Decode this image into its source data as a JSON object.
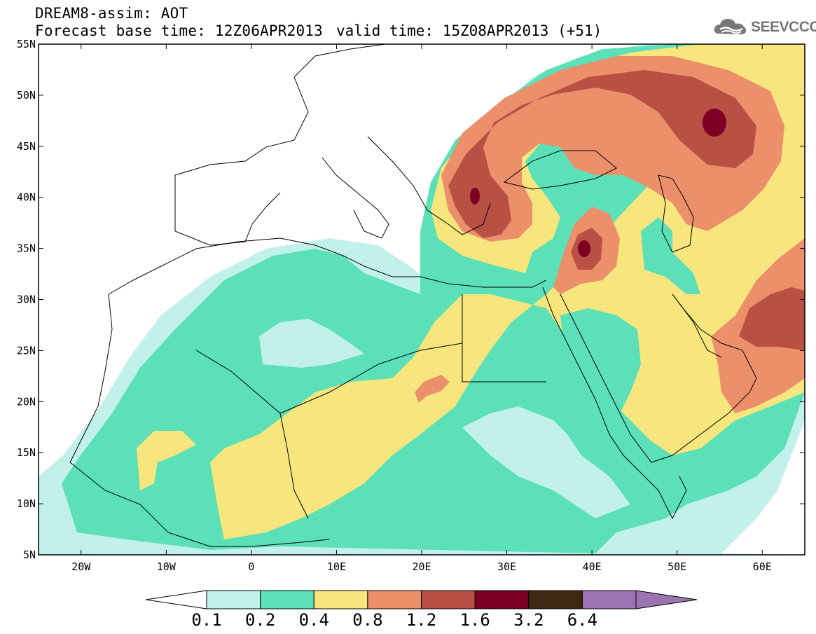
{
  "header": {
    "title": "DREAM8-assim: AOT",
    "base_time": "Forecast base time: 12Z06APR2013",
    "valid_time": "valid time: 15Z08APR2013 (+51)",
    "logo_text": "SEEVCCC",
    "logo_icon": "cloud-icon"
  },
  "map": {
    "lon_range": [
      -25,
      65
    ],
    "lat_range": [
      5,
      55
    ],
    "lat_ticks": [
      "55N",
      "50N",
      "45N",
      "40N",
      "35N",
      "30N",
      "25N",
      "20N",
      "15N",
      "10N",
      "5N"
    ],
    "lat_values": [
      55,
      50,
      45,
      40,
      35,
      30,
      25,
      20,
      15,
      10,
      5
    ],
    "lon_ticks": [
      "20W",
      "10W",
      "0",
      "10E",
      "20E",
      "30E",
      "40E",
      "50E",
      "60E"
    ],
    "lon_values": [
      -20,
      -10,
      0,
      10,
      20,
      30,
      40,
      50,
      60
    ],
    "field": "Aerosol Optical Thickness"
  },
  "colorbar": {
    "labels": [
      "0.1",
      "0.2",
      "0.4",
      "0.8",
      "1.2",
      "1.6",
      "3.2",
      "6.4"
    ],
    "colors": [
      "#ffffff",
      "#c2f0ea",
      "#5ce0b8",
      "#f7e57d",
      "#ec8f6b",
      "#b85044",
      "#7d0024",
      "#3d2814",
      "#9c74b2"
    ]
  }
}
